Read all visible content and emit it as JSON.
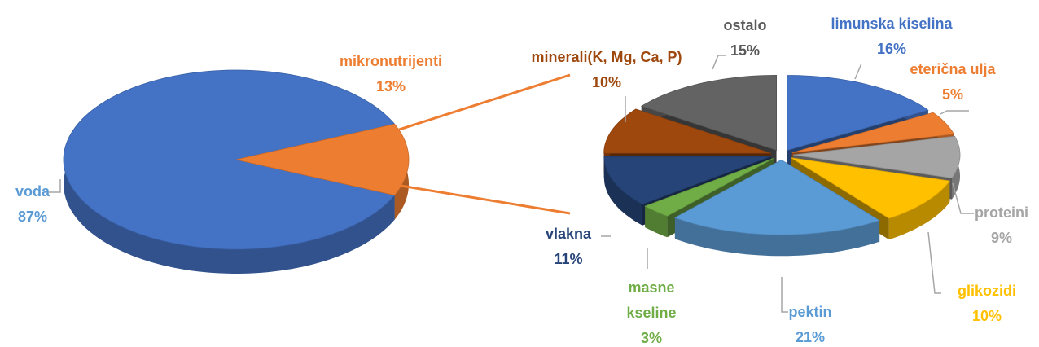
{
  "chart_data": [
    {
      "type": "pie",
      "categories": [
        "voda",
        "mikronutrijenti"
      ],
      "values": [
        87,
        13
      ],
      "value_labels": [
        "87%",
        "13%"
      ],
      "colors": [
        "#4472c4",
        "#ed7d31"
      ],
      "label_colors": [
        "#5b9bd5",
        "#ed7d31"
      ]
    },
    {
      "type": "pie",
      "categories": [
        "limunska kiselina",
        "eterična ulja",
        "proteini",
        "glikozidi",
        "pektin",
        "masne kseline",
        "vlakna",
        "minerali(K, Mg, Ca, P)",
        "ostalo"
      ],
      "values": [
        16,
        5,
        9,
        10,
        21,
        3,
        11,
        10,
        15
      ],
      "value_labels": [
        "16%",
        "5%",
        "9%",
        "10%",
        "21%",
        "3%",
        "11%",
        "10%",
        "15%"
      ],
      "colors": [
        "#4472c4",
        "#ed7d31",
        "#a5a5a5",
        "#ffc000",
        "#5b9bd5",
        "#70ad47",
        "#264478",
        "#9e480e",
        "#636363"
      ],
      "label_colors": [
        "#4472c4",
        "#ed7d31",
        "#a5a5a5",
        "#ffc000",
        "#5b9bd5",
        "#70ad47",
        "#264478",
        "#9e480e",
        "#595959"
      ]
    }
  ]
}
